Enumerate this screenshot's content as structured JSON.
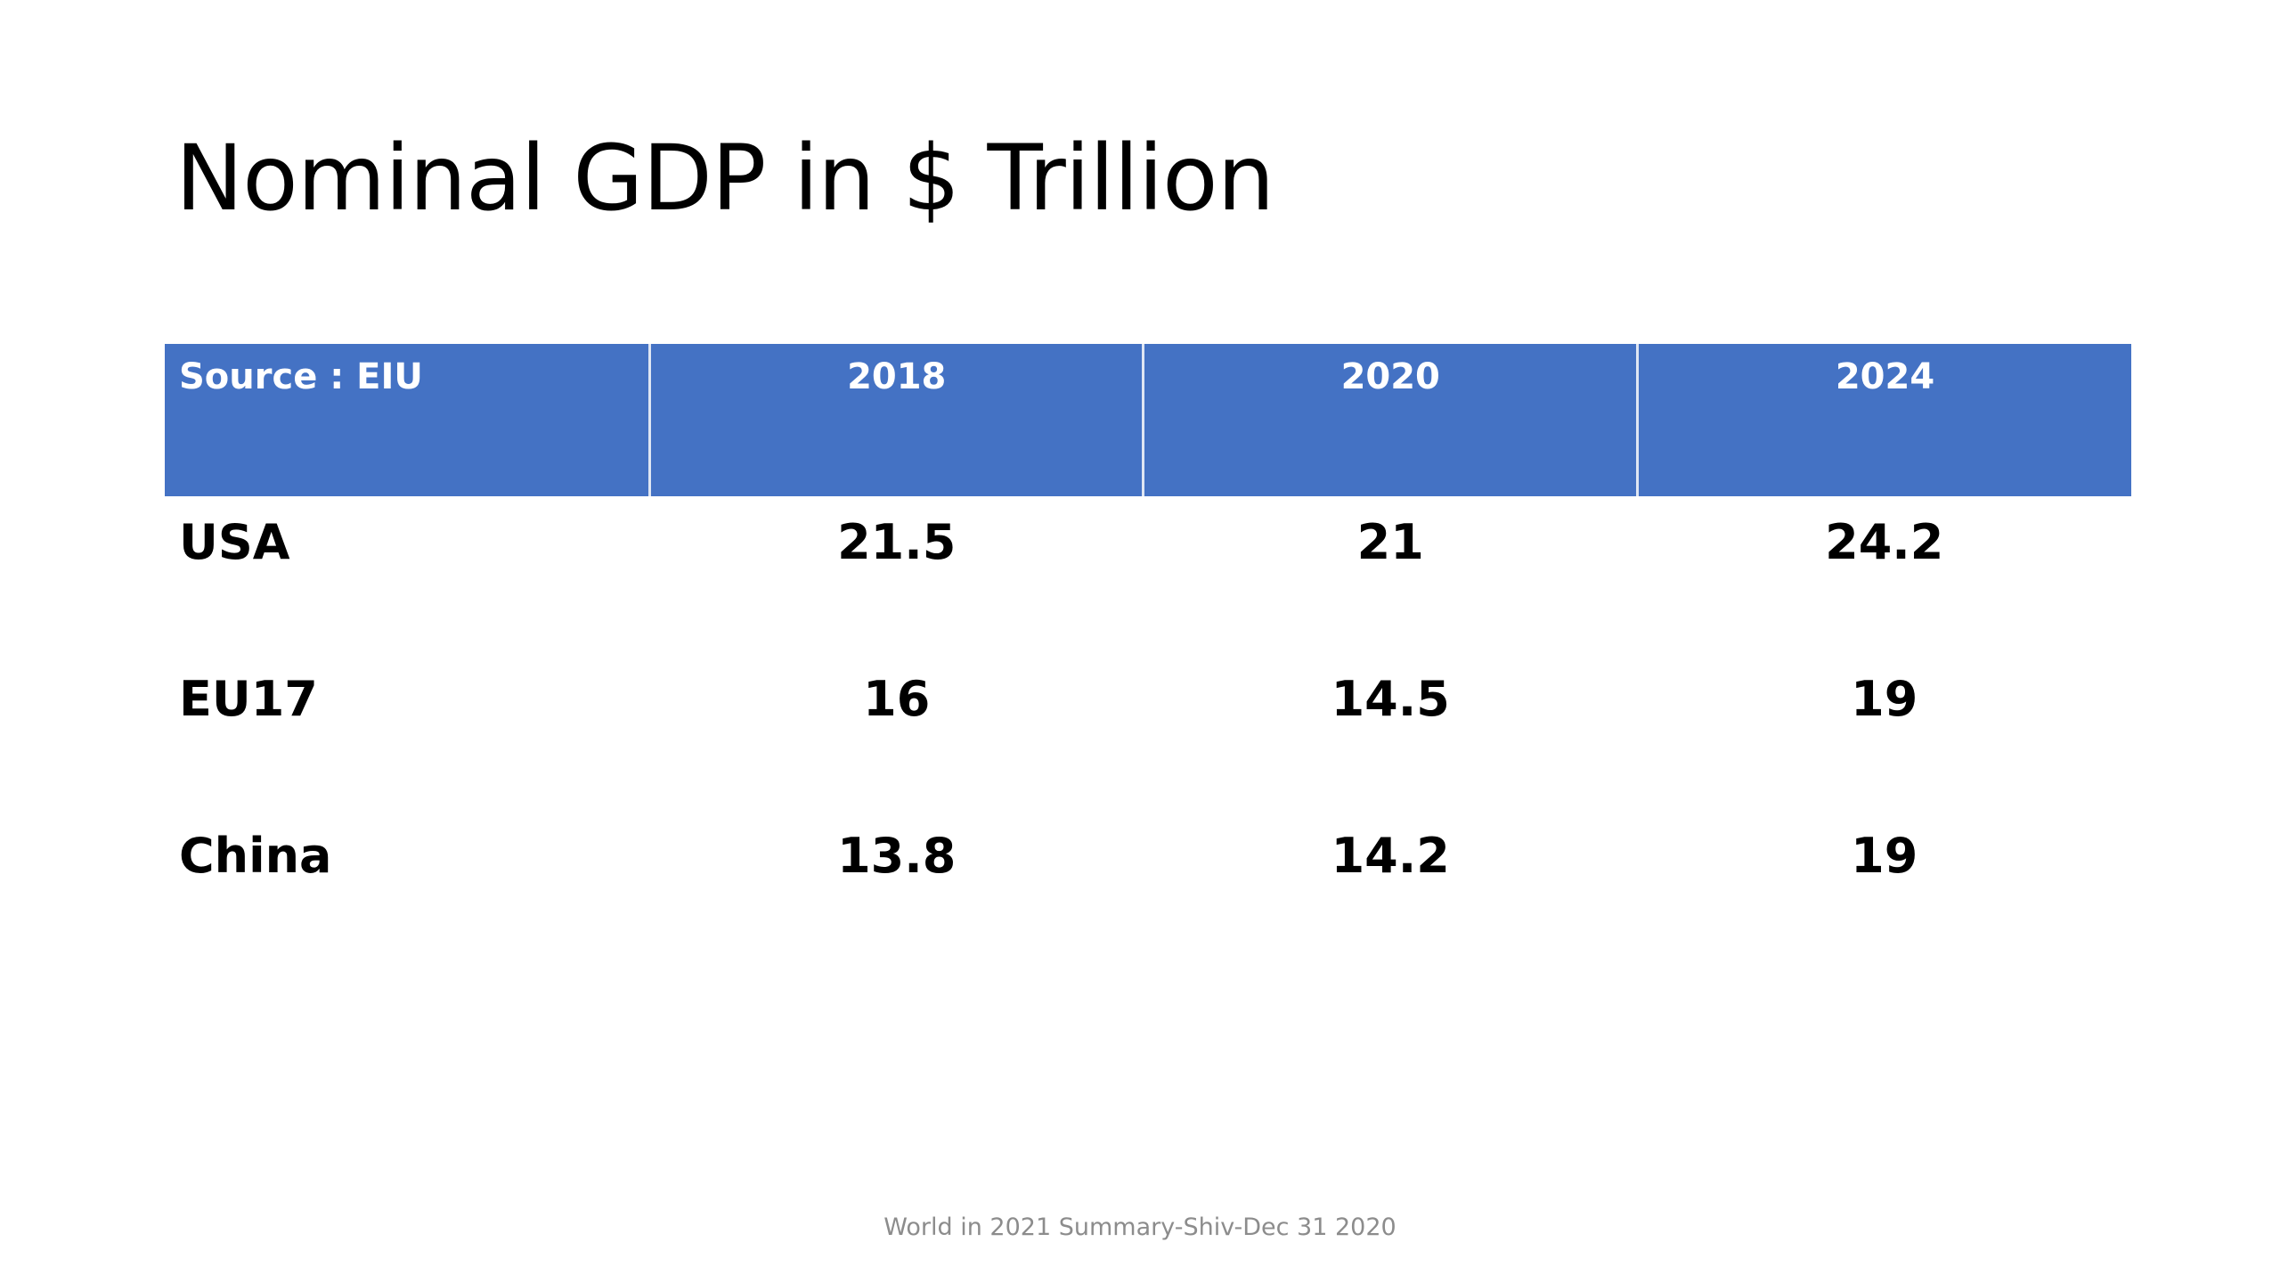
{
  "slide": {
    "title": "Nominal GDP in $ Trillion",
    "footer": "World in 2021 Summary-Shiv-Dec 31 2020"
  },
  "table": {
    "columns": [
      "Source : EIU",
      "2018",
      "2020",
      "2024"
    ],
    "rows": [
      {
        "label": "USA",
        "values": [
          "21.5",
          "21",
          "24.2"
        ]
      },
      {
        "label": "EU17",
        "values": [
          "16",
          "14.5",
          "19"
        ]
      },
      {
        "label": "China",
        "values": [
          "13.8",
          "14.2",
          "19"
        ]
      }
    ],
    "header_color": "#4472c4",
    "header_text_color": "#ffffff"
  }
}
